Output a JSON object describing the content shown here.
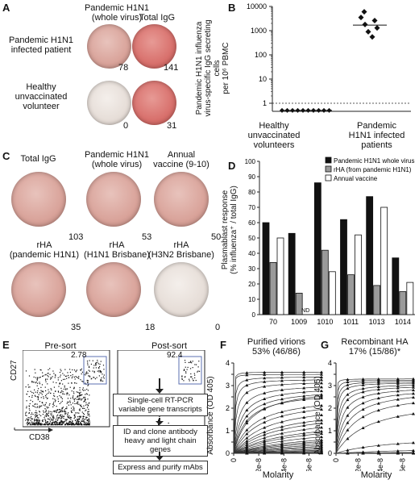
{
  "panels": {
    "A": {
      "letter": "A",
      "col_headers": [
        "Pandemic H1N1\n(whole virus)",
        "Total IgG"
      ],
      "row_labels": [
        "Pandemic H1N1\ninfected patient",
        "Healthy\nunvaccinated\nvolunteer"
      ],
      "counts": [
        "78",
        "141",
        "0",
        "31"
      ]
    },
    "B": {
      "letter": "B",
      "ylabel": "Pandemic H1N1 influenza\nvirus-specific IgG secreting cells\nper 10⁶ PBMC",
      "yticks": [
        "10000",
        "1000",
        "100",
        "10",
        "1"
      ],
      "groups": [
        "Healthy\nunvaccinated\nvolunteers",
        "Pandemic\nH1N1 infected\npatients"
      ]
    },
    "C": {
      "letter": "C",
      "titles": [
        "Total IgG",
        "Pandemic H1N1\n(whole virus)",
        "Annual\nvaccine (9-10)",
        "rHA\n(pandemic H1N1)",
        "rHA\n(H1N1 Brisbane)",
        "rHA\n(H3N2 Brisbane)"
      ],
      "counts": [
        "103",
        "53",
        "50",
        "35",
        "18",
        "0"
      ]
    },
    "D": {
      "letter": "D",
      "ylabel": "Plasmablast response\n(% influenza⁺ / total IgG)",
      "nd": "ND"
    },
    "E": {
      "letter": "E",
      "pre_title": "Pre-sort",
      "post_title": "Post-sort",
      "pre_pct": "2.78",
      "post_pct": "92.4",
      "xlabel": "CD38",
      "ylabel": "CD27",
      "steps": [
        "Single-cell RT-PCR\nvariable gene transcripts",
        "ID and clone antibody\nheavy and light chain genes",
        "Express and purify mAbs"
      ]
    },
    "F": {
      "letter": "F",
      "title": "Purified virions\n53% (46/86)",
      "xlabel": "Molarity",
      "ylabel": "Absorbance (OD 405)"
    },
    "G": {
      "letter": "G",
      "title": "Recombinant HA\n17% (15/86)*",
      "xlabel": "Molarity",
      "ylabel": "Absorbance (OD 405)"
    }
  },
  "chart_data": [
    {
      "panel": "B",
      "type": "scatter",
      "yscale": "log",
      "ylim": [
        1,
        10000
      ],
      "categories": [
        "Healthy unvaccinated volunteers",
        "Pandemic H1N1 infected patients"
      ],
      "series": [
        {
          "values": [
            0.8,
            0.8,
            0.8,
            0.8,
            0.8,
            0.8,
            0.8,
            0.8,
            0.8,
            0.8
          ]
        },
        {
          "values": [
            6000,
            3500,
            2600,
            1800,
            1300,
            900,
            550
          ]
        }
      ],
      "medians": [
        0.8,
        1700
      ]
    },
    {
      "panel": "D",
      "type": "bar",
      "categories": [
        "70",
        "1009",
        "1010",
        "1011",
        "1013",
        "1014"
      ],
      "ylim": [
        0,
        100
      ],
      "yticks": [
        0,
        10,
        20,
        30,
        40,
        50,
        60,
        70,
        80,
        90,
        100
      ],
      "series": [
        {
          "name": "Pandemic H1N1 whole virus",
          "color": "#111111",
          "values": [
            60,
            53,
            86,
            62,
            77,
            37
          ]
        },
        {
          "name": "rHA (from pandemic H1N1)",
          "color": "#9a9a9a",
          "values": [
            34,
            14,
            42,
            26,
            19,
            15
          ]
        },
        {
          "name": "Annual vaccine",
          "color": "#ffffff",
          "values": [
            50,
            null,
            28,
            52,
            70,
            21
          ]
        }
      ]
    },
    {
      "panel": "F",
      "type": "line",
      "xlim": [
        0,
        7e-08
      ],
      "ylim": [
        0,
        4
      ],
      "xticks": [
        "0",
        "2e-8",
        "4e-8",
        "6e-8"
      ],
      "yticks": [
        "0",
        "0.5",
        "1",
        "1.5",
        "2",
        "2.5",
        "3",
        "3.5",
        "4"
      ],
      "plateaus": [
        3.6,
        3.5,
        3.4,
        3.3,
        3.2,
        3.1,
        3.0,
        2.9,
        2.8,
        3.0,
        2.6,
        2.5,
        2.3,
        2.1,
        2.0,
        1.8,
        1.6,
        1.5,
        1.3,
        1.1,
        1.0,
        0.9,
        0.8,
        0.7,
        0.6,
        0.5,
        0.4,
        0.3,
        0.2,
        0.15,
        0.1,
        0.05
      ],
      "half_max_molarity": [
        1e-10,
        1e-10,
        5e-10,
        1e-09,
        2e-09,
        4e-09,
        6e-09,
        8e-09,
        1e-08,
        1.3e-08,
        1.6e-08,
        2e-08,
        2.5e-08,
        3e-08,
        3.5e-08,
        4e-08,
        4.5e-08,
        5e-08,
        5.5e-08,
        6e-08,
        6.5e-08,
        7e-08,
        8e-08,
        9e-08,
        1e-07,
        1.2e-07,
        1.4e-07,
        1.6e-07,
        2e-07,
        2.5e-07,
        3e-07,
        4e-07
      ]
    },
    {
      "panel": "G",
      "type": "line",
      "xlim": [
        0,
        7e-08
      ],
      "ylim": [
        0,
        4
      ],
      "xticks": [
        "0",
        "2e-8",
        "4e-8",
        "6e-8"
      ],
      "yticks": [
        "0",
        "0.5",
        "1",
        "1.5",
        "2",
        "2.5",
        "3",
        "3.5",
        "4"
      ],
      "plateaus": [
        3.3,
        3.25,
        3.2,
        3.15,
        3.1,
        3.05,
        3.0,
        2.95,
        2.9,
        2.8,
        2.5,
        0.8,
        0.3,
        0.15,
        0.1,
        0.05,
        0.05,
        0.05
      ],
      "half_max_molarity": [
        1e-10,
        3e-10,
        6e-10,
        1e-09,
        2e-09,
        3e-09,
        5e-09,
        8e-09,
        1.2e-08,
        1.8e-08,
        3e-08,
        5e-08,
        1e-07,
        2e-07,
        3e-07,
        5e-07,
        8e-07,
        1e-06
      ]
    }
  ]
}
